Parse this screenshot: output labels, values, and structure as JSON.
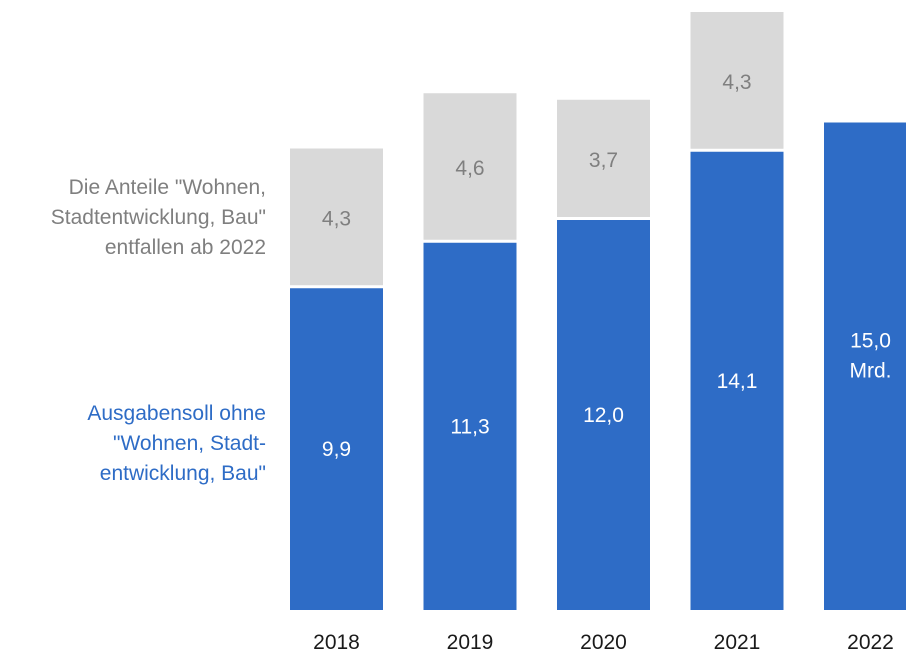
{
  "chart_data": {
    "type": "bar",
    "stacked": true,
    "categories": [
      "2018",
      "2019",
      "2020",
      "2021",
      "2022"
    ],
    "series": [
      {
        "values": [
          9.9,
          11.3,
          12.0,
          14.1,
          15.0
        ],
        "color": "#2e6cc6"
      },
      {
        "values": [
          4.3,
          4.6,
          3.7,
          4.3,
          null
        ],
        "color": "#d9d9d9"
      }
    ],
    "value_labels": {
      "base": [
        "9,9",
        "11,3",
        "12,0",
        "14,1",
        "15,0"
      ],
      "top": [
        "4,3",
        "4,6",
        "3,7",
        "4,3",
        ""
      ]
    },
    "unit_label": "Mrd.",
    "ylim": [
      0,
      18.4
    ],
    "grid": false,
    "legend": "none"
  },
  "annotations": {
    "grey": [
      "Die Anteile \"Wohnen,",
      "Stadtentwicklung, Bau\"",
      "entfallen ab 2022"
    ],
    "blue": [
      "Ausgabensoll ohne",
      "\"Wohnen, Stadt-",
      "entwicklung, Bau\""
    ]
  }
}
